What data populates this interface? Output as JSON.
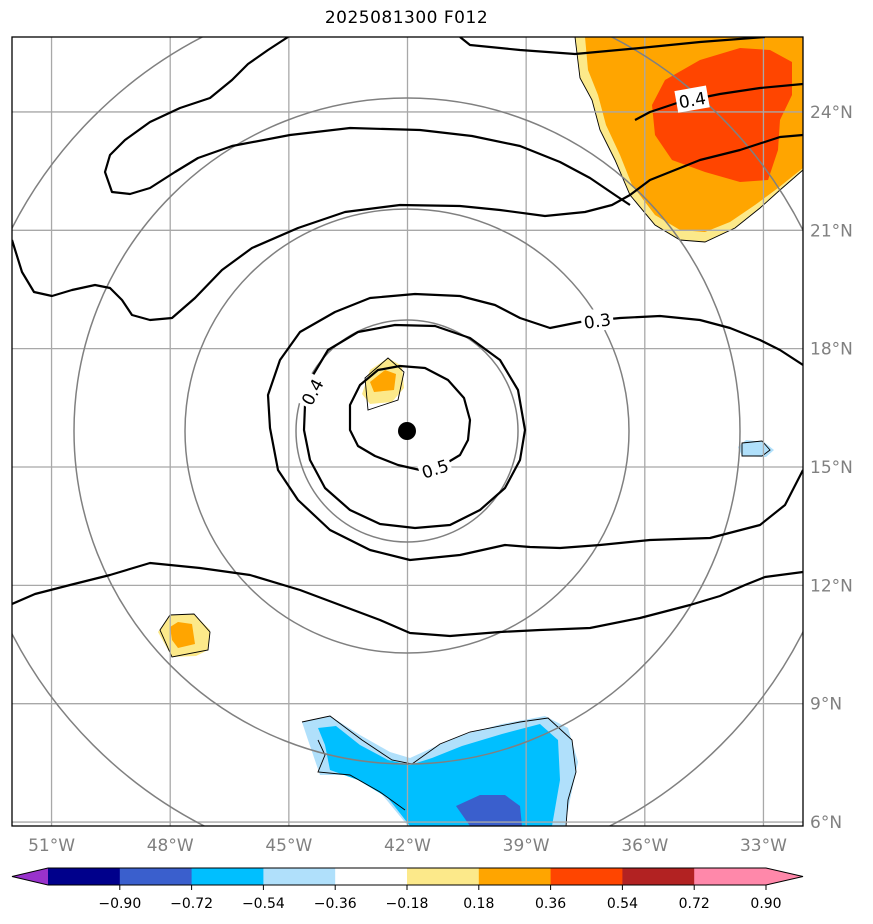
{
  "title": "2025081300 F012",
  "map": {
    "lon_range": [
      -52.0,
      -32.0
    ],
    "lat_range": [
      5.9,
      25.9
    ],
    "center": {
      "lon": -42.0,
      "lat": 15.9
    },
    "x_ticks": [
      {
        "lon": -51,
        "label": "51°W"
      },
      {
        "lon": -48,
        "label": "48°W"
      },
      {
        "lon": -45,
        "label": "45°W"
      },
      {
        "lon": -42,
        "label": "42°W"
      },
      {
        "lon": -39,
        "label": "39°W"
      },
      {
        "lon": -36,
        "label": "36°W"
      },
      {
        "lon": -33,
        "label": "33°W"
      }
    ],
    "y_ticks": [
      {
        "lat": 24,
        "label": "24°N"
      },
      {
        "lat": 21,
        "label": "21°N"
      },
      {
        "lat": 18,
        "label": "18°N"
      },
      {
        "lat": 15,
        "label": "15°N"
      },
      {
        "lat": 12,
        "label": "12°N"
      },
      {
        "lat": 9,
        "label": "9°N"
      },
      {
        "lat": 6,
        "label": "6°N"
      }
    ],
    "contour_labels": [
      {
        "text": "0.4",
        "lon": -34.8,
        "lat": 24.3,
        "angle": -10
      },
      {
        "text": "0.3",
        "lon": -37.2,
        "lat": 18.7,
        "angle": -8
      },
      {
        "text": "0.4",
        "lon": -44.4,
        "lat": 16.9,
        "angle": -62
      },
      {
        "text": "0.5",
        "lon": -41.3,
        "lat": 14.95,
        "angle": -18
      }
    ],
    "colors": {
      "purple": "#9932cc",
      "navy": "#00008b",
      "royalblue": "#3a5fcd",
      "deepskyblue": "#00bfff",
      "lightblue": "#b0e0fb",
      "white": "#ffffff",
      "lightyellow": "#fce98a",
      "orange": "#ffa500",
      "orangered": "#ff4500",
      "firebrick": "#b22222",
      "pink": "#ff88aa"
    }
  },
  "colorbar": {
    "tick_labels": [
      "−0.90",
      "−0.72",
      "−0.54",
      "−0.36",
      "−0.18",
      "0.18",
      "0.36",
      "0.54",
      "0.72",
      "0.90"
    ],
    "colors": [
      "#00008b",
      "#3a5fcd",
      "#00bfff",
      "#b0e0fb",
      "#ffffff",
      "#fce98a",
      "#ffa500",
      "#ff4500",
      "#b22222",
      "#ff88aa"
    ],
    "under_color": "#9932cc",
    "over_color": "#ff88aa"
  }
}
